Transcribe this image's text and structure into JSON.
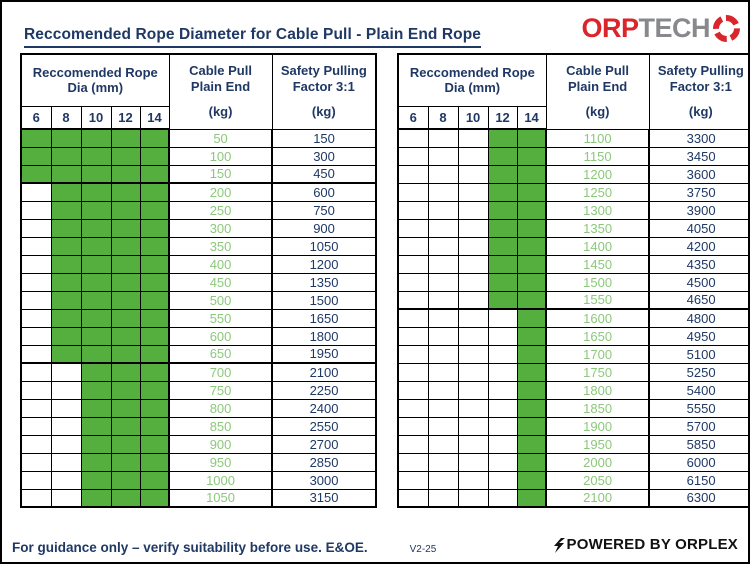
{
  "page": {
    "title": "Reccomended Rope Diameter for Cable Pull - Plain End Rope",
    "logo": {
      "part1": "ORP",
      "part2": "TECH",
      "icon": "starburst-icon"
    },
    "colors": {
      "navy": "#1F3864",
      "green_fill": "#55AF3F",
      "green_value_text": "#8CC87B",
      "green_header_text": "#4CB648",
      "logo_red": "#D9252B",
      "logo_gray": "#87898C"
    },
    "footer": {
      "disclaimer": "For guidance only – verify suitability before use. E&OE.",
      "version": "V2-25",
      "powered_by": "POWERED BY ORPLEX"
    }
  },
  "table_header": {
    "dia_title": "Reccomended Rope Dia (mm)",
    "dia_columns": [
      "6",
      "8",
      "10",
      "12",
      "14"
    ],
    "pull_line1": "Cable Pull",
    "pull_line2": "Plain End",
    "safety_line1": "Safety Pulling",
    "safety_line2": "Factor 3:1",
    "unit": "(kg)"
  },
  "tables": [
    {
      "rows": [
        {
          "pull": "50",
          "safety": "150",
          "dias": [
            6,
            8,
            10,
            12,
            14
          ]
        },
        {
          "pull": "100",
          "safety": "300",
          "dias": [
            6,
            8,
            10,
            12,
            14
          ]
        },
        {
          "pull": "150",
          "safety": "450",
          "dias": [
            6,
            8,
            10,
            12,
            14
          ]
        },
        {
          "pull": "200",
          "safety": "600",
          "dias": [
            8,
            10,
            12,
            14
          ]
        },
        {
          "pull": "250",
          "safety": "750",
          "dias": [
            8,
            10,
            12,
            14
          ]
        },
        {
          "pull": "300",
          "safety": "900",
          "dias": [
            8,
            10,
            12,
            14
          ]
        },
        {
          "pull": "350",
          "safety": "1050",
          "dias": [
            8,
            10,
            12,
            14
          ]
        },
        {
          "pull": "400",
          "safety": "1200",
          "dias": [
            8,
            10,
            12,
            14
          ]
        },
        {
          "pull": "450",
          "safety": "1350",
          "dias": [
            8,
            10,
            12,
            14
          ]
        },
        {
          "pull": "500",
          "safety": "1500",
          "dias": [
            8,
            10,
            12,
            14
          ]
        },
        {
          "pull": "550",
          "safety": "1650",
          "dias": [
            8,
            10,
            12,
            14
          ]
        },
        {
          "pull": "600",
          "safety": "1800",
          "dias": [
            8,
            10,
            12,
            14
          ]
        },
        {
          "pull": "650",
          "safety": "1950",
          "dias": [
            8,
            10,
            12,
            14
          ]
        },
        {
          "pull": "700",
          "safety": "2100",
          "dias": [
            10,
            12,
            14
          ]
        },
        {
          "pull": "750",
          "safety": "2250",
          "dias": [
            10,
            12,
            14
          ]
        },
        {
          "pull": "800",
          "safety": "2400",
          "dias": [
            10,
            12,
            14
          ]
        },
        {
          "pull": "850",
          "safety": "2550",
          "dias": [
            10,
            12,
            14
          ]
        },
        {
          "pull": "900",
          "safety": "2700",
          "dias": [
            10,
            12,
            14
          ]
        },
        {
          "pull": "950",
          "safety": "2850",
          "dias": [
            10,
            12,
            14
          ]
        },
        {
          "pull": "1000",
          "safety": "3000",
          "dias": [
            10,
            12,
            14
          ]
        },
        {
          "pull": "1050",
          "safety": "3150",
          "dias": [
            10,
            12,
            14
          ]
        }
      ]
    },
    {
      "rows": [
        {
          "pull": "1100",
          "safety": "3300",
          "dias": [
            12,
            14
          ]
        },
        {
          "pull": "1150",
          "safety": "3450",
          "dias": [
            12,
            14
          ]
        },
        {
          "pull": "1200",
          "safety": "3600",
          "dias": [
            12,
            14
          ]
        },
        {
          "pull": "1250",
          "safety": "3750",
          "dias": [
            12,
            14
          ]
        },
        {
          "pull": "1300",
          "safety": "3900",
          "dias": [
            12,
            14
          ]
        },
        {
          "pull": "1350",
          "safety": "4050",
          "dias": [
            12,
            14
          ]
        },
        {
          "pull": "1400",
          "safety": "4200",
          "dias": [
            12,
            14
          ]
        },
        {
          "pull": "1450",
          "safety": "4350",
          "dias": [
            12,
            14
          ]
        },
        {
          "pull": "1500",
          "safety": "4500",
          "dias": [
            12,
            14
          ]
        },
        {
          "pull": "1550",
          "safety": "4650",
          "dias": [
            12,
            14
          ]
        },
        {
          "pull": "1600",
          "safety": "4800",
          "dias": [
            14
          ]
        },
        {
          "pull": "1650",
          "safety": "4950",
          "dias": [
            14
          ]
        },
        {
          "pull": "1700",
          "safety": "5100",
          "dias": [
            14
          ]
        },
        {
          "pull": "1750",
          "safety": "5250",
          "dias": [
            14
          ]
        },
        {
          "pull": "1800",
          "safety": "5400",
          "dias": [
            14
          ]
        },
        {
          "pull": "1850",
          "safety": "5550",
          "dias": [
            14
          ]
        },
        {
          "pull": "1900",
          "safety": "5700",
          "dias": [
            14
          ]
        },
        {
          "pull": "1950",
          "safety": "5850",
          "dias": [
            14
          ]
        },
        {
          "pull": "2000",
          "safety": "6000",
          "dias": [
            14
          ]
        },
        {
          "pull": "2050",
          "safety": "6150",
          "dias": [
            14
          ]
        },
        {
          "pull": "2100",
          "safety": "6300",
          "dias": [
            14
          ]
        }
      ]
    }
  ]
}
